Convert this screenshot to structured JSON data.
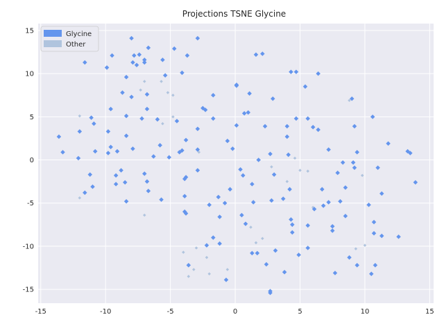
{
  "chart_data": {
    "type": "scatter",
    "title": "Projections TSNE Glycine",
    "xlabel": "",
    "ylabel": "",
    "xlim": [
      -15.2,
      15.3
    ],
    "ylim": [
      -16.6,
      15.8
    ],
    "x_ticks": [
      -15,
      -10,
      -5,
      0,
      5,
      10,
      15
    ],
    "y_ticks": [
      -15,
      -10,
      -5,
      0,
      5,
      10,
      15
    ],
    "grid": true,
    "legend_position": "top-left",
    "background": "#EAEAF2",
    "series": [
      {
        "name": "Glycine",
        "color": "#6495ED",
        "points": [
          [
            -11.6,
            11.3
          ],
          [
            -9.9,
            10.7
          ],
          [
            -9.5,
            12.1
          ],
          [
            -8.0,
            14.1
          ],
          [
            -7.8,
            12.1
          ],
          [
            -7.4,
            12.2
          ],
          [
            -7.0,
            11.6
          ],
          [
            -7.0,
            11.3
          ],
          [
            -6.7,
            13.0
          ],
          [
            -7.9,
            11.3
          ],
          [
            -7.6,
            11.0
          ],
          [
            -5.6,
            11.6
          ],
          [
            -5.4,
            9.8
          ],
          [
            -4.7,
            12.9
          ],
          [
            -8.4,
            9.6
          ],
          [
            -4.1,
            10.1
          ],
          [
            -3.7,
            12.1
          ],
          [
            -2.9,
            14.1
          ],
          [
            -8.7,
            7.8
          ],
          [
            -8.0,
            7.3
          ],
          [
            -9.6,
            5.9
          ],
          [
            -6.8,
            7.6
          ],
          [
            -8.4,
            5.1
          ],
          [
            -7.2,
            4.8
          ],
          [
            -6.8,
            5.9
          ],
          [
            -6.0,
            4.7
          ],
          [
            -4.5,
            4.5
          ],
          [
            -12.0,
            3.3
          ],
          [
            -10.9,
            4.2
          ],
          [
            -11.1,
            4.9
          ],
          [
            -9.8,
            3.3
          ],
          [
            -8.4,
            2.8
          ],
          [
            -13.6,
            2.7
          ],
          [
            -13.3,
            0.9
          ],
          [
            -12.1,
            0.2
          ],
          [
            -10.8,
            1.0
          ],
          [
            -9.6,
            1.5
          ],
          [
            -9.1,
            1.0
          ],
          [
            -9.8,
            0.8
          ],
          [
            -7.9,
            1.3
          ],
          [
            -6.3,
            0.4
          ],
          [
            -5.8,
            1.7
          ],
          [
            -5.1,
            0.3
          ],
          [
            -3.8,
            2.3
          ],
          [
            -4.1,
            1.1
          ],
          [
            -4.3,
            0.9
          ],
          [
            -2.9,
            1.2
          ],
          [
            -2.9,
            -1.2
          ],
          [
            -3.8,
            -2.0
          ],
          [
            -3.9,
            -2.2
          ],
          [
            -8.8,
            -1.2
          ],
          [
            -7.0,
            -1.6
          ],
          [
            -9.2,
            -1.8
          ],
          [
            -11.2,
            -1.7
          ],
          [
            -9.2,
            -2.8
          ],
          [
            -8.5,
            -2.6
          ],
          [
            -6.8,
            -2.5
          ],
          [
            -6.7,
            -3.6
          ],
          [
            -11.0,
            -3.1
          ],
          [
            -11.6,
            -3.8
          ],
          [
            -8.4,
            -4.8
          ],
          [
            -5.7,
            -4.6
          ],
          [
            -3.9,
            -4.2
          ],
          [
            -3.9,
            -6.0
          ],
          [
            -3.8,
            -6.2
          ],
          [
            -2.0,
            -5.2
          ],
          [
            -1.3,
            -4.3
          ],
          [
            -0.8,
            -5.0
          ],
          [
            -0.4,
            -3.4
          ],
          [
            -1.2,
            -6.6
          ],
          [
            -1.7,
            -9.0
          ],
          [
            -2.2,
            -9.9
          ],
          [
            -1.2,
            -9.7
          ],
          [
            -0.7,
            -13.9
          ],
          [
            -3.6,
            -12.2
          ],
          [
            -2.9,
            3.6
          ],
          [
            -2.5,
            6.0
          ],
          [
            -2.3,
            5.8
          ],
          [
            -1.7,
            7.5
          ],
          [
            -1.7,
            4.8
          ],
          [
            -0.6,
            2.2
          ],
          [
            -0.2,
            1.3
          ],
          [
            0.1,
            8.7
          ],
          [
            0.1,
            8.6
          ],
          [
            0.1,
            4.0
          ],
          [
            1.0,
            5.5
          ],
          [
            0.7,
            5.4
          ],
          [
            1.1,
            7.7
          ],
          [
            1.6,
            12.2
          ],
          [
            2.1,
            12.3
          ],
          [
            2.9,
            7.1
          ],
          [
            2.3,
            3.9
          ],
          [
            4.0,
            3.9
          ],
          [
            4.0,
            2.7
          ],
          [
            4.3,
            10.2
          ],
          [
            4.7,
            10.2
          ],
          [
            5.4,
            8.5
          ],
          [
            6.4,
            10.0
          ],
          [
            4.7,
            4.8
          ],
          [
            5.6,
            4.8
          ],
          [
            6.0,
            3.8
          ],
          [
            6.4,
            3.5
          ],
          [
            7.2,
            1.2
          ],
          [
            1.8,
            0.0
          ],
          [
            2.7,
            0.7
          ],
          [
            4.1,
            0.6
          ],
          [
            3.0,
            -1.7
          ],
          [
            0.4,
            -1.1
          ],
          [
            0.6,
            -1.8
          ],
          [
            1.3,
            -2.8
          ],
          [
            4.2,
            -3.4
          ],
          [
            3.7,
            -4.5
          ],
          [
            2.8,
            -4.7
          ],
          [
            1.4,
            -4.9
          ],
          [
            0.5,
            -6.4
          ],
          [
            0.8,
            -7.4
          ],
          [
            1.3,
            -10.8
          ],
          [
            1.7,
            -10.8
          ],
          [
            2.4,
            -12.1
          ],
          [
            3.1,
            -10.5
          ],
          [
            2.7,
            -15.2
          ],
          [
            2.7,
            -15.4
          ],
          [
            3.8,
            -13.0
          ],
          [
            4.3,
            -6.9
          ],
          [
            4.4,
            -7.5
          ],
          [
            4.4,
            -8.4
          ],
          [
            4.9,
            -11.0
          ],
          [
            5.6,
            -10.2
          ],
          [
            5.6,
            -7.6
          ],
          [
            6.1,
            -5.7
          ],
          [
            6.7,
            -3.4
          ],
          [
            6.8,
            -5.3
          ],
          [
            7.2,
            -4.9
          ],
          [
            7.5,
            -7.7
          ],
          [
            7.5,
            -8.2
          ],
          [
            7.9,
            -1.5
          ],
          [
            8.1,
            -4.8
          ],
          [
            8.3,
            -0.3
          ],
          [
            8.5,
            -3.2
          ],
          [
            8.5,
            -6.5
          ],
          [
            8.8,
            -11.3
          ],
          [
            9.1,
            -0.3
          ],
          [
            9.2,
            -0.9
          ],
          [
            9.0,
            7.1
          ],
          [
            9.2,
            3.9
          ],
          [
            9.4,
            0.9
          ],
          [
            9.4,
            -12.2
          ],
          [
            10.3,
            -5.2
          ],
          [
            10.5,
            -13.2
          ],
          [
            10.6,
            5.0
          ],
          [
            10.7,
            -7.2
          ],
          [
            10.7,
            -8.5
          ],
          [
            10.8,
            -12.2
          ],
          [
            11.0,
            -0.9
          ],
          [
            11.3,
            -3.9
          ],
          [
            11.3,
            -8.8
          ],
          [
            11.8,
            1.9
          ],
          [
            12.6,
            -8.9
          ],
          [
            13.3,
            1.0
          ],
          [
            13.5,
            0.8
          ],
          [
            13.9,
            -2.6
          ],
          [
            7.7,
            -13.1
          ]
        ]
      },
      {
        "name": "Other",
        "color": "#B0C4DE",
        "points": [
          [
            -12.0,
            5.1
          ],
          [
            -12.0,
            -4.4
          ],
          [
            -7.0,
            9.1
          ],
          [
            -7.3,
            8.1
          ],
          [
            -5.7,
            9.1
          ],
          [
            -5.2,
            7.8
          ],
          [
            -4.8,
            7.5
          ],
          [
            -4.8,
            5.0
          ],
          [
            -5.6,
            4.2
          ],
          [
            -7.0,
            -6.4
          ],
          [
            -4.0,
            -10.7
          ],
          [
            -3.0,
            -10.2
          ],
          [
            -3.2,
            -12.7
          ],
          [
            -3.6,
            -13.5
          ],
          [
            -2.8,
            0.9
          ],
          [
            -2.2,
            -11.3
          ],
          [
            -2.0,
            -13.2
          ],
          [
            -0.6,
            -12.7
          ],
          [
            1.2,
            -7.8
          ],
          [
            1.6,
            -9.6
          ],
          [
            2.1,
            -9.1
          ],
          [
            2.8,
            -0.8
          ],
          [
            4.0,
            -2.5
          ],
          [
            4.6,
            0.2
          ],
          [
            5.0,
            -1.2
          ],
          [
            5.6,
            -1.3
          ],
          [
            6.0,
            -5.5
          ],
          [
            8.8,
            6.9
          ],
          [
            9.3,
            -10.3
          ],
          [
            9.8,
            -1.8
          ],
          [
            10.0,
            -9.9
          ]
        ]
      }
    ]
  }
}
